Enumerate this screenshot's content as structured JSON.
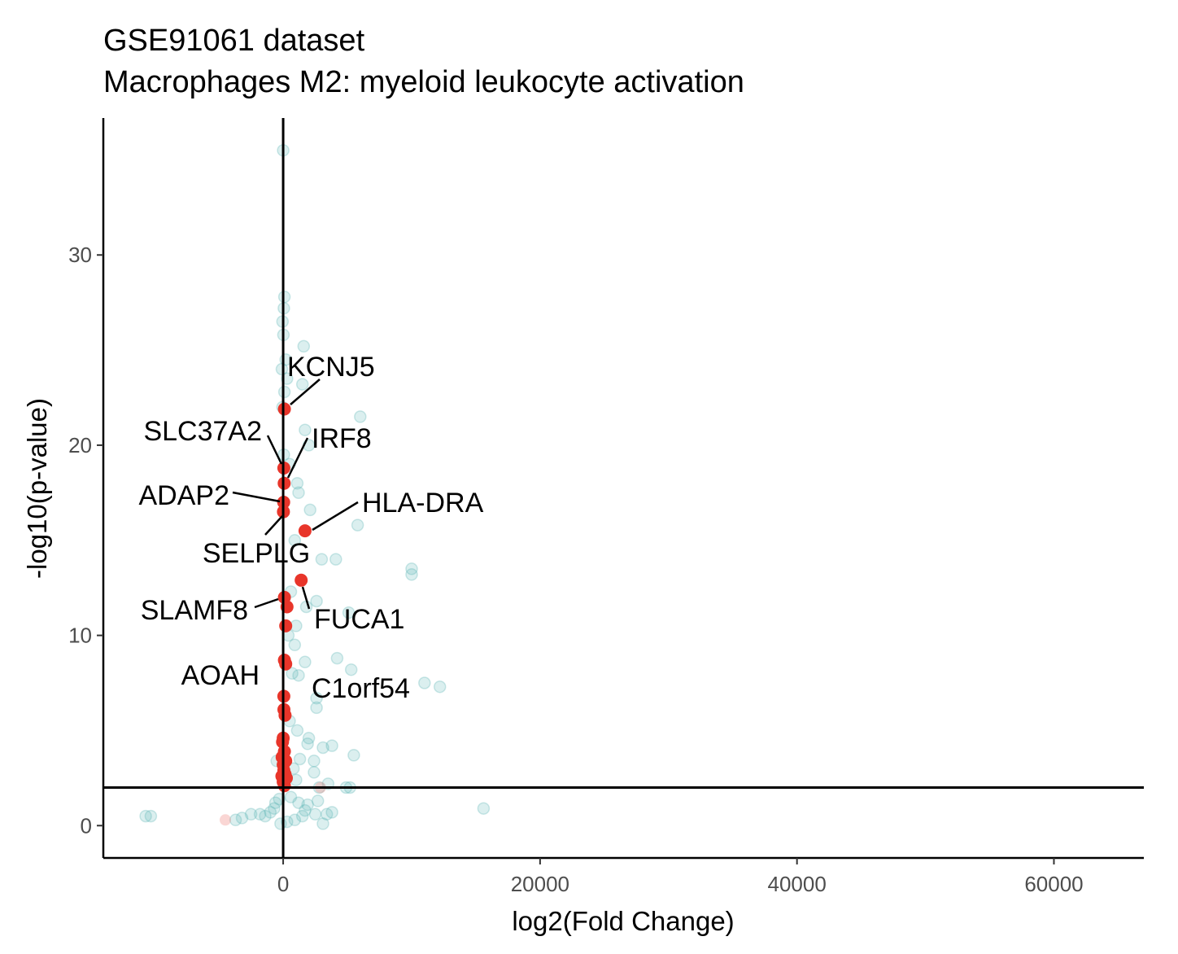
{
  "chart_data": {
    "type": "scatter",
    "title": "GSE91061 dataset",
    "subtitle": "Macrophages M2: myeloid leukocyte activation",
    "xlabel": "log2(Fold Change)",
    "ylabel": "-log10(p-value)",
    "xlim": [
      -14000,
      67000
    ],
    "ylim": [
      -1.7,
      37.2
    ],
    "x_ticks": [
      "0",
      "20000",
      "40000",
      "60000"
    ],
    "x_tick_values": [
      0,
      20000,
      40000,
      60000
    ],
    "y_ticks": [
      "0",
      "10",
      "20",
      "30"
    ],
    "y_tick_values": [
      0,
      10,
      20,
      30
    ],
    "reference_lines": {
      "x": 0,
      "y": 2
    },
    "grid": false,
    "legend": "none",
    "colors": {
      "background_genes": "#5ab4b4",
      "highlighted_genes": "#e8352a",
      "faded_highlight": "#f08a84"
    },
    "series": [
      {
        "role": "background",
        "points": [
          [
            0,
            35.5
          ],
          [
            100,
            27.8
          ],
          [
            50,
            27.2
          ],
          [
            -50,
            26.5
          ],
          [
            20,
            25.8
          ],
          [
            1600,
            25.2
          ],
          [
            200,
            24.5
          ],
          [
            -100,
            24.0
          ],
          [
            300,
            23.5
          ],
          [
            1500,
            23.2
          ],
          [
            100,
            22.8
          ],
          [
            -50,
            22.0
          ],
          [
            6000,
            21.5
          ],
          [
            1700,
            20.8
          ],
          [
            2000,
            20.0
          ],
          [
            50,
            19.5
          ],
          [
            500,
            19.0
          ],
          [
            1100,
            18.0
          ],
          [
            1200,
            17.5
          ],
          [
            2100,
            16.6
          ],
          [
            5800,
            15.8
          ],
          [
            900,
            15.0
          ],
          [
            3000,
            14.0
          ],
          [
            4100,
            14.0
          ],
          [
            10000,
            13.5
          ],
          [
            10000,
            13.2
          ],
          [
            600,
            12.3
          ],
          [
            2600,
            11.8
          ],
          [
            1800,
            11.5
          ],
          [
            5100,
            11.2
          ],
          [
            1000,
            10.5
          ],
          [
            400,
            10.0
          ],
          [
            900,
            9.5
          ],
          [
            4200,
            8.8
          ],
          [
            1700,
            8.6
          ],
          [
            5300,
            8.2
          ],
          [
            700,
            8.0
          ],
          [
            1200,
            7.9
          ],
          [
            11000,
            7.5
          ],
          [
            12200,
            7.3
          ],
          [
            2600,
            6.7
          ],
          [
            2600,
            6.2
          ],
          [
            500,
            5.5
          ],
          [
            1100,
            5.0
          ],
          [
            2000,
            4.6
          ],
          [
            1900,
            4.3
          ],
          [
            3100,
            4.1
          ],
          [
            3800,
            4.2
          ],
          [
            1300,
            3.5
          ],
          [
            5500,
            3.7
          ],
          [
            2400,
            3.4
          ],
          [
            -500,
            3.4
          ],
          [
            800,
            3.0
          ],
          [
            2400,
            2.8
          ],
          [
            1000,
            2.4
          ],
          [
            3500,
            2.2
          ],
          [
            4900,
            2.0
          ],
          [
            5200,
            2.0
          ],
          [
            2800,
            2.0
          ],
          [
            15600,
            0.9
          ],
          [
            3800,
            0.7
          ],
          [
            3400,
            0.6
          ],
          [
            1700,
            0.8
          ],
          [
            1500,
            0.5
          ],
          [
            -1000,
            0.7
          ],
          [
            -1800,
            0.6
          ],
          [
            -2500,
            0.6
          ],
          [
            -1400,
            0.5
          ],
          [
            -10300,
            0.5
          ],
          [
            -10700,
            0.5
          ],
          [
            -3200,
            0.4
          ],
          [
            -3700,
            0.3
          ],
          [
            -600,
            1.2
          ],
          [
            -300,
            1.4
          ],
          [
            600,
            1.5
          ],
          [
            1200,
            1.2
          ],
          [
            3100,
            0.1
          ],
          [
            2500,
            0.6
          ],
          [
            900,
            0.3
          ],
          [
            -200,
            0.1
          ],
          [
            300,
            0.2
          ],
          [
            -700,
            0.9
          ],
          [
            1900,
            1.1
          ],
          [
            2700,
            1.3
          ]
        ]
      },
      {
        "role": "highlight",
        "points": [
          [
            100,
            21.9
          ],
          [
            50,
            18.8
          ],
          [
            80,
            18.0
          ],
          [
            40,
            17.0
          ],
          [
            20,
            16.5
          ],
          [
            1700,
            15.5
          ],
          [
            1400,
            12.9
          ],
          [
            100,
            12.0
          ],
          [
            300,
            11.5
          ],
          [
            200,
            10.5
          ],
          [
            100,
            8.7
          ],
          [
            200,
            8.5
          ],
          [
            50,
            6.8
          ],
          [
            60,
            6.1
          ],
          [
            150,
            5.8
          ],
          [
            0,
            4.6
          ],
          [
            -50,
            4.4
          ],
          [
            100,
            3.9
          ],
          [
            -80,
            3.6
          ],
          [
            200,
            3.4
          ],
          [
            0,
            3.2
          ],
          [
            50,
            2.9
          ],
          [
            150,
            2.7
          ],
          [
            -100,
            2.6
          ],
          [
            250,
            2.5
          ],
          [
            0,
            2.3
          ],
          [
            100,
            2.1
          ]
        ]
      },
      {
        "role": "faded-highlight",
        "points": [
          [
            -4500,
            0.3
          ],
          [
            2900,
            2.0
          ]
        ]
      }
    ],
    "annotations": [
      {
        "label": "KCNJ5",
        "x": 100,
        "y": 21.9
      },
      {
        "label": "SLC37A2",
        "x": 50,
        "y": 18.8
      },
      {
        "label": "IRF8",
        "x": 80,
        "y": 18.0
      },
      {
        "label": "ADAP2",
        "x": 40,
        "y": 17.0
      },
      {
        "label": "HLA-DRA",
        "x": 1700,
        "y": 15.5
      },
      {
        "label": "SELPLG",
        "x": 20,
        "y": 16.5
      },
      {
        "label": "SLAMF8",
        "x": 100,
        "y": 12.0
      },
      {
        "label": "FUCA1",
        "x": 1400,
        "y": 12.9
      },
      {
        "label": "AOAH",
        "x": 200,
        "y": 10.5
      },
      {
        "label": "C1orf54",
        "x": 300,
        "y": 11.5
      }
    ]
  }
}
